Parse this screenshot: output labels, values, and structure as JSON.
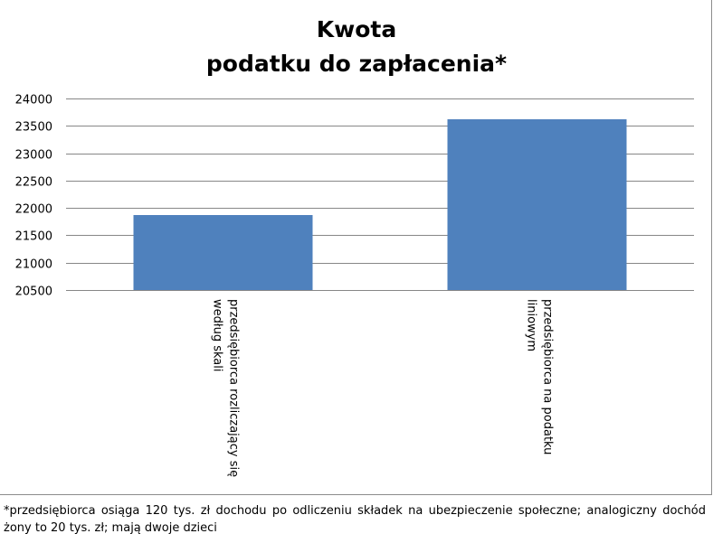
{
  "title_lines": [
    "Kwota",
    "podatku do zapłacenia*"
  ],
  "footnote": "*przedsiębiorca osiąga 120 tys. zł dochodu po odliczeniu składek na ubezpieczenie społeczne; analogiczny dochód żony to 20 tys. zł; mają dwoje dzieci",
  "colors": {
    "bar": "#4f81bd",
    "grid": "#878787",
    "text": "#000000"
  },
  "chart_data": {
    "type": "bar",
    "title": "Kwota podatku do zapłacenia*",
    "categories": [
      "przedsiębiorca rozliczający się według skali",
      "przedsiębiorca na podatku liniowym"
    ],
    "category_label_lines": [
      [
        "przedsiębiorca rozliczający się",
        "według skali"
      ],
      [
        "przedsiębiorca na podatku",
        "liniowym"
      ]
    ],
    "values": [
      21870,
      23620
    ],
    "ylim": [
      20500,
      24000
    ],
    "yticks": [
      20500,
      21000,
      21500,
      22000,
      22500,
      23000,
      23500,
      24000
    ],
    "xlabel": "",
    "ylabel": "",
    "grid": true,
    "legend": "none"
  }
}
